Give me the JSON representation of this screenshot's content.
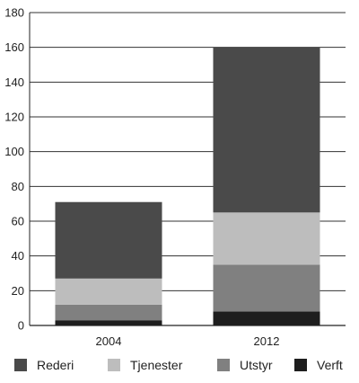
{
  "chart_data": {
    "type": "bar",
    "stacked": true,
    "title": "",
    "xlabel": "",
    "ylabel": "",
    "categories": [
      "2004",
      "2012"
    ],
    "ylim": [
      0,
      180
    ],
    "yticks": [
      0,
      20,
      40,
      60,
      80,
      100,
      120,
      140,
      160,
      180
    ],
    "grid": "horizontal",
    "legend_position": "bottom",
    "series": [
      {
        "name": "Verft",
        "values": [
          3,
          8
        ],
        "color": "#1e1e1e"
      },
      {
        "name": "Utstyr",
        "values": [
          9,
          27
        ],
        "color": "#808080"
      },
      {
        "name": "Tjenester",
        "values": [
          15,
          30
        ],
        "color": "#bdbdbd"
      },
      {
        "name": "Rederi",
        "values": [
          44,
          95
        ],
        "color": "#4a4a4a"
      }
    ],
    "legend_order": [
      "Rederi",
      "Tjenester",
      "Utstyr",
      "Verft"
    ]
  }
}
